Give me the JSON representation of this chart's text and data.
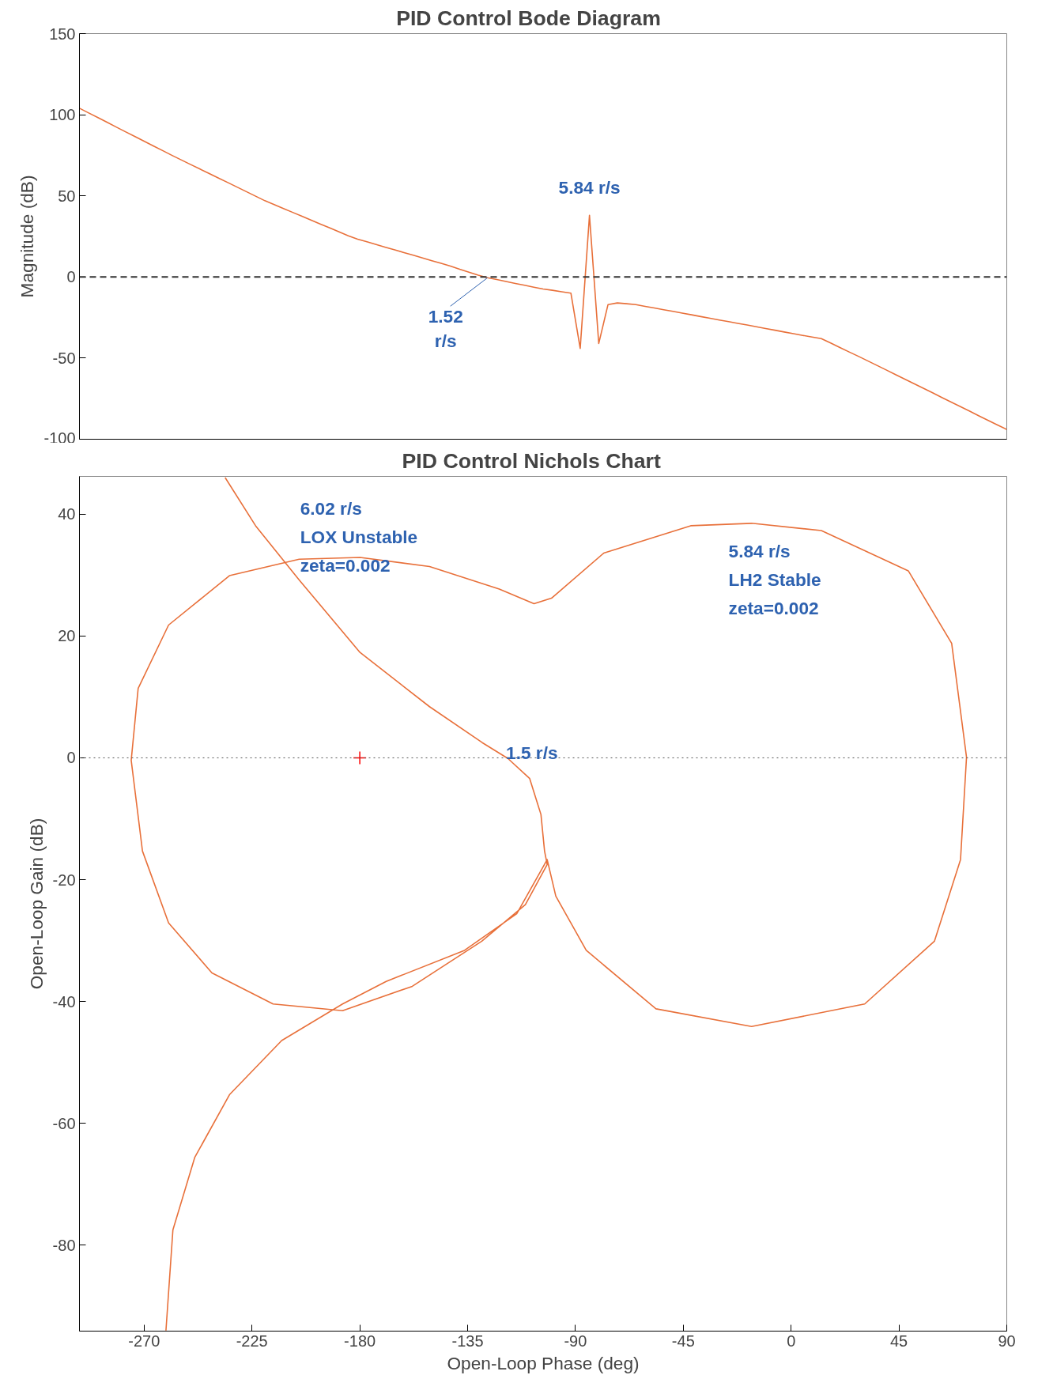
{
  "chart_data": [
    {
      "type": "line",
      "title": "PID Control      Bode Diagram",
      "ylabel": "Magnitude (dB)",
      "tick_labels": "y",
      "grid": false,
      "categories": [
        null,
        null,
        null,
        null,
        null,
        null,
        null,
        null,
        null,
        null,
        null,
        null,
        null,
        null,
        null,
        null,
        null,
        null,
        null,
        null,
        null,
        null,
        null,
        null,
        null,
        null,
        null,
        null,
        null,
        null,
        null,
        null,
        null,
        null,
        null,
        null,
        null,
        null,
        null,
        null,
        null,
        null,
        null,
        null,
        null,
        null,
        null,
        null,
        null,
        null,
        null,
        null,
        null,
        null,
        null,
        null,
        null,
        null,
        null,
        null,
        null,
        null,
        null,
        null,
        null,
        null,
        null,
        null,
        null,
        null,
        null,
        null,
        null,
        null,
        null,
        null,
        null,
        null,
        null,
        null,
        null,
        null,
        null,
        null,
        null,
        null,
        null,
        null,
        null,
        null,
        null,
        null,
        null,
        null,
        null,
        null,
        null,
        null,
        null,
        null,
        null
      ],
      "ylim": [
        -100,
        150
      ],
      "yticks": [
        -100,
        -50,
        0,
        50,
        100,
        150
      ],
      "series": [
        {
          "color": "#e8703a",
          "values": [
            104,
            101.1,
            98.2,
            95.3,
            92.3,
            89.4,
            86.5,
            83.6,
            80.7,
            77.8,
            74.9,
            72.1,
            69.3,
            66.5,
            63.7,
            60.9,
            58.2,
            55.4,
            52.6,
            49.8,
            47,
            44.6,
            42.2,
            39.8,
            37.4,
            35.0,
            32.6,
            30.2,
            27.8,
            25.4,
            23.3,
            21.7,
            20.0,
            18.3,
            16.7,
            15.0,
            13.4,
            11.7,
            10.0,
            8.4,
            6.7,
            4.8,
            3.0,
            1.1,
            -0.5,
            -1.6,
            -2.8,
            -4.0,
            -5.1,
            -6.3,
            -7.4,
            -8.2,
            -9.1,
            -10,
            -44,
            38,
            -41,
            -17,
            -16,
            -16.5,
            -17,
            -18.1,
            -19.1,
            -20.2,
            -21.2,
            -22.3,
            -23.3,
            -24.4,
            -25.4,
            -26.5,
            -27.5,
            -28.6,
            -29.6,
            -30.7,
            -31.8,
            -32.8,
            -33.9,
            -34.9,
            -36,
            -37,
            -38,
            -40.7,
            -43.5,
            -46.2,
            -48.9,
            -51.7,
            -54.5,
            -57.3,
            -60.2,
            -63.0,
            -65.8,
            -68.6,
            -71.4,
            -74.3,
            -77.1,
            -79.9,
            -82.7,
            -85.6,
            -88.4,
            -91.2,
            -94
          ]
        }
      ],
      "ref_lines": [
        {
          "axis": "y",
          "value": 0,
          "color": "#333333",
          "line_style": "dashed"
        }
      ],
      "annotations": [
        "5.84 r/s",
        "1.52\nr/s"
      ]
    },
    {
      "type": "line",
      "title": "PID Control     Nichols Chart",
      "xlabel": "Open-Loop Phase (deg)",
      "ylabel": "Open-Loop Gain (dB)",
      "grid": false,
      "xlim": [
        -297,
        90
      ],
      "xticks": [
        -270,
        -225,
        -180,
        -135,
        -90,
        -45,
        0,
        45,
        90
      ],
      "ylim": [
        -94.1,
        46.2
      ],
      "yticks": [
        -80,
        -60,
        -40,
        -20,
        0,
        20,
        40
      ],
      "series": [
        {
          "color": "#e8703a",
          "x": [
            -236.2,
            -223.5,
            -205.3,
            -179.9,
            -150.9,
            -128.9,
            -118.2,
            -109.1,
            -104.4,
            -102.9,
            -101.8,
            -110.9,
            -129.1,
            -158.1,
            -187.2,
            -216.2,
            -241.7,
            -259.8,
            -270.7,
            -275.4,
            -272.5,
            -259.8,
            -234.4,
            -205.3,
            -179.9,
            -150.9,
            -121.8,
            -107.3,
            -100.0,
            -78.2,
            -41.9,
            -16.5,
            12.6,
            48.9,
            67.0,
            73.2,
            70.7,
            59.8,
            30.7,
            -16.5,
            -56.4,
            -85.5,
            -98.2,
            -101.8,
            -114.5,
            -136.3,
            -169.0,
            -187.2,
            -212.6,
            -234.4,
            -248.9,
            -258.0,
            -260.9
          ],
          "values": [
            46.0,
            38.1,
            29.2,
            17.3,
            8.4,
            2.5,
            -0.1,
            -3.4,
            -9.3,
            -15.3,
            -17.5,
            -24.1,
            -30.1,
            -37.5,
            -41.5,
            -40.4,
            -35.3,
            -27.1,
            -15.3,
            -0.4,
            11.4,
            21.8,
            29.9,
            32.6,
            32.9,
            31.4,
            27.7,
            25.3,
            26.2,
            33.6,
            38.1,
            38.5,
            37.3,
            30.7,
            18.8,
            0.1,
            -16.7,
            -30.1,
            -40.4,
            -44.1,
            -41.2,
            -31.6,
            -22.7,
            -16.7,
            -25.6,
            -31.6,
            -36.7,
            -40.4,
            -46.4,
            -55.3,
            -65.6,
            -77.5,
            -94.0
          ]
        },
        {
          "type": "scatter",
          "marker": "cross",
          "color": "#ff0000",
          "x": [
            -180
          ],
          "values": [
            0
          ]
        }
      ],
      "ref_lines": [
        {
          "axis": "y",
          "value": 0,
          "color": "#555555",
          "line_style": "dotted"
        }
      ],
      "annotations": [
        "6.02 r/s\nLOX Unstable\n   zeta=0.002",
        "5.84 r/s\nLH2 Stable\n zeta=0.002",
        "1.5 r/s"
      ]
    }
  ]
}
